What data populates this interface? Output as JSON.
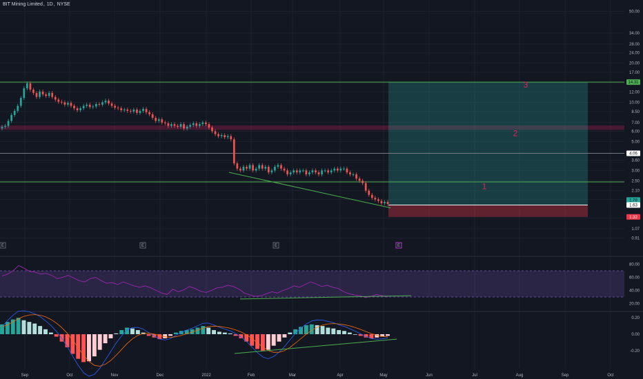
{
  "header": {
    "symbol_name": "BIT Mining Limited",
    "interval": "1D",
    "exchange": "NYSE"
  },
  "theme": {
    "background": "#131722",
    "grid": "#1e222d",
    "up": "#26a69a",
    "up_alt": "#4caf50",
    "down": "#ef5350",
    "hline": "#4caf50",
    "white_line": "#ffffff",
    "zone_color": "#e91e63",
    "target_fill": "#26a69a",
    "stop_fill": "#f23645",
    "rsi_band": "#7e57c2",
    "rsi_line": "#9c27b0"
  },
  "chart_data": {
    "type": "candlestick",
    "price_scale": "log",
    "price_ticks": [
      "50.00",
      "34.00",
      "28.00",
      "24.00",
      "20.00",
      "17.00",
      "14.00",
      "12.00",
      "10.00",
      "8.50",
      "7.00",
      "6.00",
      "5.00",
      "3.60",
      "3.00",
      "2.50",
      "2.10",
      "1.80",
      "1.30",
      "1.07",
      "0.91"
    ],
    "price_tags": [
      {
        "label": "14.31",
        "value": 14.31,
        "color": "#4caf50"
      },
      {
        "label": "4.06",
        "value": 4.06,
        "color": "#ffffff"
      },
      {
        "label": "1.78",
        "value": 1.78,
        "color": "#26a69a"
      },
      {
        "label": "1.63",
        "value": 1.63,
        "color": "#ffffff"
      },
      {
        "label": "1.32",
        "value": 1.32,
        "color": "#f23645"
      }
    ],
    "horizontal_lines": [
      {
        "value": 14.31,
        "color": "#4caf50"
      },
      {
        "value": 4.06,
        "color": "#787b86"
      },
      {
        "value": 2.45,
        "color": "#4caf50"
      }
    ],
    "resistance_zone": {
      "low": 6.15,
      "high": 6.65
    },
    "position": {
      "entry": 1.63,
      "target": 14.31,
      "stop": 1.32,
      "from_month": "Apr",
      "to_month": "Sep"
    },
    "zone_labels": [
      "1",
      "2",
      "3"
    ],
    "time_labels": [
      "Sep",
      "Oct",
      "Nov",
      "Dec",
      "2022",
      "Feb",
      "Mar",
      "Apr",
      "May",
      "Jun",
      "Jul",
      "Aug",
      "Sep",
      "Oct"
    ],
    "earnings_markers": [
      "E",
      "E",
      "E",
      "E"
    ],
    "price_series": [
      6.5,
      6.6,
      7.2,
      8.0,
      8.6,
      9.4,
      10.8,
      12.8,
      14.0,
      12.5,
      11.8,
      11.0,
      12.1,
      11.5,
      11.2,
      11.8,
      11.0,
      10.5,
      10.1,
      10.0,
      9.6,
      9.9,
      9.4,
      9.0,
      8.7,
      9.0,
      9.4,
      9.6,
      9.2,
      9.3,
      9.7,
      9.6,
      10.0,
      10.3,
      9.8,
      9.4,
      9.1,
      9.0,
      8.7,
      8.8,
      8.6,
      8.5,
      8.8,
      8.3,
      8.6,
      8.9,
      8.4,
      8.1,
      7.6,
      7.2,
      7.4,
      7.0,
      6.9,
      6.6,
      6.8,
      6.6,
      6.5,
      6.8,
      6.3,
      6.5,
      6.7,
      6.9,
      6.6,
      6.8,
      7.0,
      6.8,
      6.4,
      6.0,
      5.7,
      5.5,
      5.6,
      5.4,
      5.5,
      5.2,
      3.4,
      3.1,
      3.0,
      3.2,
      3.1,
      3.3,
      3.0,
      3.1,
      3.3,
      3.1,
      3.2,
      2.9,
      3.0,
      3.2,
      3.3,
      3.1,
      3.0,
      2.8,
      2.9,
      3.0,
      2.9,
      3.0,
      3.0,
      2.8,
      2.9,
      3.0,
      2.9,
      2.8,
      3.0,
      3.0,
      2.9,
      3.0,
      3.1,
      3.0,
      3.1,
      3.1,
      2.9,
      2.8,
      2.8,
      2.6,
      2.5,
      2.4,
      2.1,
      1.95,
      1.85,
      1.8,
      1.75,
      1.68,
      1.72,
      1.66
    ],
    "rsi": {
      "ticks": [
        "80.00",
        "60.00",
        "40.00",
        "20.00"
      ],
      "band": [
        30,
        70
      ],
      "series": [
        62,
        65,
        70,
        78,
        74,
        69,
        68,
        65,
        66,
        63,
        58,
        60,
        63,
        59,
        55,
        53,
        58,
        60,
        55,
        51,
        52,
        49,
        53,
        50,
        47,
        45,
        47,
        44,
        40,
        36,
        34,
        42,
        38,
        41,
        46,
        43,
        39,
        37,
        40,
        44,
        45,
        48,
        46,
        42,
        36,
        33,
        31,
        32,
        35,
        38,
        36,
        40,
        43,
        47,
        45,
        49,
        53,
        50,
        46,
        48,
        45,
        43,
        38,
        35,
        33,
        32,
        29,
        31,
        34,
        32,
        30
      ]
    },
    "macd": {
      "ticks": [
        "0.20",
        "0.00",
        "-0.20"
      ],
      "histogram": [
        0.12,
        0.15,
        0.18,
        0.2,
        0.17,
        0.15,
        0.13,
        0.1,
        0.06,
        0.02,
        -0.03,
        -0.09,
        -0.16,
        -0.24,
        -0.3,
        -0.34,
        -0.33,
        -0.27,
        -0.19,
        -0.11,
        -0.05,
        0.01,
        0.05,
        0.08,
        0.07,
        0.05,
        0.02,
        -0.02,
        -0.04,
        -0.06,
        -0.05,
        -0.02,
        0.02,
        0.04,
        0.05,
        0.06,
        0.08,
        0.1,
        0.08,
        0.05,
        0.03,
        0.02,
        0.01,
        -0.02,
        -0.05,
        -0.09,
        -0.14,
        -0.18,
        -0.2,
        -0.19,
        -0.14,
        -0.09,
        -0.04,
        0.02,
        0.06,
        0.09,
        0.11,
        0.12,
        0.11,
        0.1,
        0.08,
        0.07,
        0.05,
        0.04,
        0.02,
        0.0,
        -0.02,
        -0.04,
        -0.05,
        -0.04,
        -0.03,
        -0.02
      ]
    }
  },
  "annotation_text": {
    "earnings": "E"
  }
}
